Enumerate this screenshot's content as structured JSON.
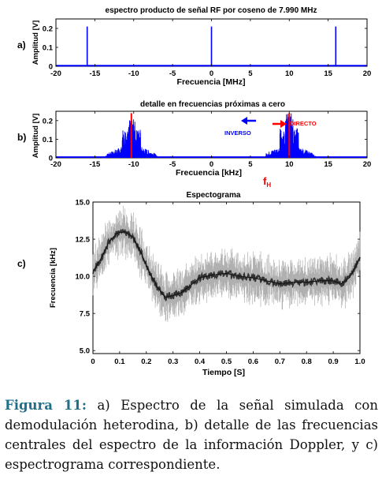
{
  "panel_labels": [
    "a)",
    "b)",
    "c)"
  ],
  "annotations": {
    "inverso": "INVERSO",
    "directo": "DIRECTO",
    "fh_main": "f",
    "fh_sub": "H"
  },
  "caption": {
    "label": "Figura 11:",
    "text": " a) Espectro de la señal simulada con demodulación heterodina, b) detalle de las frecuencias centrales del espectro de la información Doppler, y c) espectrograma correspondiente."
  },
  "colors": {
    "spectrum": "#0000ff",
    "marker": "#ff0000",
    "spectrogram": "#333333"
  },
  "chart_data": [
    {
      "type": "line",
      "title": "espectro producto de señal RF por  coseno de 7.990 MHz",
      "xlabel": "Frecuencia [MHz]",
      "ylabel": "Amplitud [V]",
      "xlim": [
        -20,
        20
      ],
      "ylim": [
        0,
        0.25
      ],
      "xticks": [
        -20,
        -15,
        -10,
        -5,
        0,
        5,
        10,
        15,
        20
      ],
      "yticks": [
        0,
        0.1,
        0.2
      ],
      "xtick_labels": [
        "-20",
        "-15",
        "-10",
        "-5",
        "0",
        "5",
        "10",
        "15",
        "20"
      ],
      "ytick_labels": [
        "0",
        "0.1",
        "0.2"
      ],
      "peaks": [
        {
          "x": -15.98,
          "y": 0.21
        },
        {
          "x": 0,
          "y": 0.21
        },
        {
          "x": 15.98,
          "y": 0.21
        }
      ]
    },
    {
      "type": "line",
      "title": "detalle en frecuencias próximas a cero",
      "xlabel": "Frecuencia  [kHz]",
      "ylabel": "Amplitud [V]",
      "xlim": [
        -20,
        20
      ],
      "ylim": [
        0,
        0.25
      ],
      "xticks": [
        -20,
        -15,
        -10,
        -5,
        0,
        5,
        10,
        15,
        20
      ],
      "yticks": [
        0,
        0.1,
        0.2
      ],
      "xtick_labels": [
        "-20",
        "-15",
        "-10",
        "-5",
        "0",
        "5",
        "10",
        "15",
        "20"
      ],
      "ytick_labels": [
        "0",
        "0.1",
        "0.2"
      ],
      "bands": [
        {
          "from": -14,
          "to": -7,
          "center": -10.3,
          "peak": 0.21
        },
        {
          "from": 7,
          "to": 14,
          "center": 10,
          "peak": 0.24
        }
      ],
      "markers": [
        -10.3,
        10
      ]
    },
    {
      "type": "line",
      "title": "Espectograma",
      "xlabel": "Tiempo  [S]",
      "ylabel": "Frecuencia [kHz]",
      "xlim": [
        0,
        1.0
      ],
      "ylim": [
        4.8,
        15.0
      ],
      "xticks": [
        0,
        0.1,
        0.2,
        0.3,
        0.4,
        0.5,
        0.6,
        0.7,
        0.8,
        0.9,
        1.0
      ],
      "yticks": [
        5.0,
        7.5,
        10.0,
        12.5,
        15.0
      ],
      "xtick_labels": [
        "0",
        "0.1",
        "0.2",
        "0.3",
        "0.4",
        "0.5",
        "0.6",
        "0.7",
        "0.8",
        "0.9",
        "1.0"
      ],
      "ytick_labels": [
        "5.0",
        "7.5",
        "10.0",
        "12.5",
        "15.0"
      ],
      "x": [
        0.0,
        0.03,
        0.06,
        0.09,
        0.12,
        0.15,
        0.18,
        0.21,
        0.24,
        0.27,
        0.3,
        0.33,
        0.36,
        0.4,
        0.45,
        0.5,
        0.55,
        0.6,
        0.65,
        0.7,
        0.75,
        0.8,
        0.85,
        0.9,
        0.93,
        0.96,
        0.98,
        1.0
      ],
      "y": [
        10.3,
        11.2,
        12.3,
        12.9,
        13.0,
        12.6,
        11.6,
        10.3,
        9.3,
        8.6,
        8.7,
        8.9,
        9.3,
        9.9,
        10.1,
        10.2,
        10.0,
        9.9,
        9.7,
        9.5,
        9.6,
        9.6,
        9.7,
        9.7,
        9.5,
        9.9,
        10.5,
        11.3
      ]
    }
  ]
}
